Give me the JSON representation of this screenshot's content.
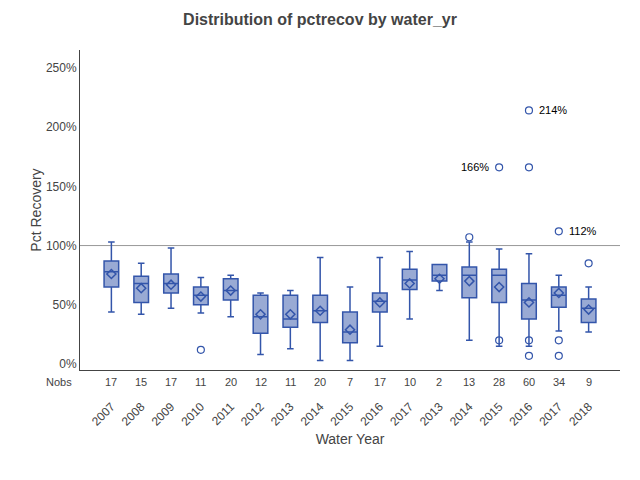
{
  "chart_data": {
    "type": "box",
    "title": "Distribution of pctrecov by water_yr",
    "x_label": "Water Year",
    "y_label": "Pct Recovery",
    "categories": [
      "2007",
      "2008",
      "2009",
      "2010",
      "2011",
      "2012",
      "2013",
      "2014",
      "2015",
      "2016",
      "2017",
      "2013",
      "2014",
      "2015",
      "2016",
      "2017",
      "2018"
    ],
    "nobs_label": "Nobs",
    "nobs": [
      17,
      15,
      17,
      11,
      20,
      12,
      11,
      20,
      7,
      17,
      10,
      2,
      13,
      28,
      60,
      34,
      9
    ],
    "boxes": [
      {
        "q1": 65,
        "med": 78,
        "q3": 87,
        "mean": 76,
        "whislo": 44,
        "whishi": 103,
        "fliers": []
      },
      {
        "q1": 52,
        "med": 68,
        "q3": 74,
        "mean": 64,
        "whislo": 42,
        "whishi": 85,
        "fliers": []
      },
      {
        "q1": 60,
        "med": 68,
        "q3": 76,
        "mean": 67,
        "whislo": 47,
        "whishi": 98,
        "fliers": []
      },
      {
        "q1": 50,
        "med": 58,
        "q3": 65,
        "mean": 57,
        "whislo": 43,
        "whishi": 73,
        "fliers": [
          12
        ]
      },
      {
        "q1": 54,
        "med": 62,
        "q3": 72,
        "mean": 62,
        "whislo": 40,
        "whishi": 75,
        "fliers": []
      },
      {
        "q1": 26,
        "med": 40,
        "q3": 58,
        "mean": 42,
        "whislo": 8,
        "whishi": 60,
        "fliers": []
      },
      {
        "q1": 31,
        "med": 38,
        "q3": 58,
        "mean": 42,
        "whislo": 13,
        "whishi": 62,
        "fliers": []
      },
      {
        "q1": 35,
        "med": 45,
        "q3": 58,
        "mean": 45,
        "whislo": 3,
        "whishi": 90,
        "fliers": []
      },
      {
        "q1": 18,
        "med": 27,
        "q3": 44,
        "mean": 29,
        "whislo": 3,
        "whishi": 65,
        "fliers": []
      },
      {
        "q1": 44,
        "med": 53,
        "q3": 60,
        "mean": 52,
        "whislo": 15,
        "whishi": 90,
        "fliers": []
      },
      {
        "q1": 63,
        "med": 71,
        "q3": 80,
        "mean": 68,
        "whislo": 38,
        "whishi": 95,
        "fliers": []
      },
      {
        "q1": 70,
        "med": 75,
        "q3": 84,
        "mean": 72,
        "whislo": 62,
        "whishi": 84,
        "fliers": []
      },
      {
        "q1": 56,
        "med": 75,
        "q3": 82,
        "mean": 70,
        "whislo": 20,
        "whishi": 103,
        "fliers": [
          107
        ]
      },
      {
        "q1": 52,
        "med": 75,
        "q3": 80,
        "mean": 65,
        "whislo": 15,
        "whishi": 97,
        "fliers": [
          20,
          166
        ]
      },
      {
        "q1": 38,
        "med": 54,
        "q3": 68,
        "mean": 52,
        "whislo": 15,
        "whishi": 93,
        "fliers": [
          20,
          7,
          166,
          214
        ]
      },
      {
        "q1": 48,
        "med": 58,
        "q3": 65,
        "mean": 60,
        "whislo": 28,
        "whishi": 75,
        "fliers": [
          20,
          7,
          112
        ]
      },
      {
        "q1": 35,
        "med": 47,
        "q3": 55,
        "mean": 46,
        "whislo": 27,
        "whishi": 65,
        "fliers": [
          85
        ]
      }
    ],
    "reference_line": 100,
    "annotations": [
      {
        "category_index": 14,
        "y": 214,
        "text": "214%"
      },
      {
        "category_index": 13,
        "y": 166,
        "text": "166%"
      },
      {
        "category_index": 15,
        "y": 112,
        "text": "112%"
      }
    ],
    "ylim": [
      -5,
      265
    ],
    "yticks": [
      {
        "value": 0,
        "label": "0%"
      },
      {
        "value": 50,
        "label": "50%"
      },
      {
        "value": 100,
        "label": "100%"
      },
      {
        "value": 150,
        "label": "150%"
      },
      {
        "value": 200,
        "label": "200%"
      },
      {
        "value": 250,
        "label": "250%"
      }
    ],
    "color": "#3355aa",
    "grid": false
  }
}
